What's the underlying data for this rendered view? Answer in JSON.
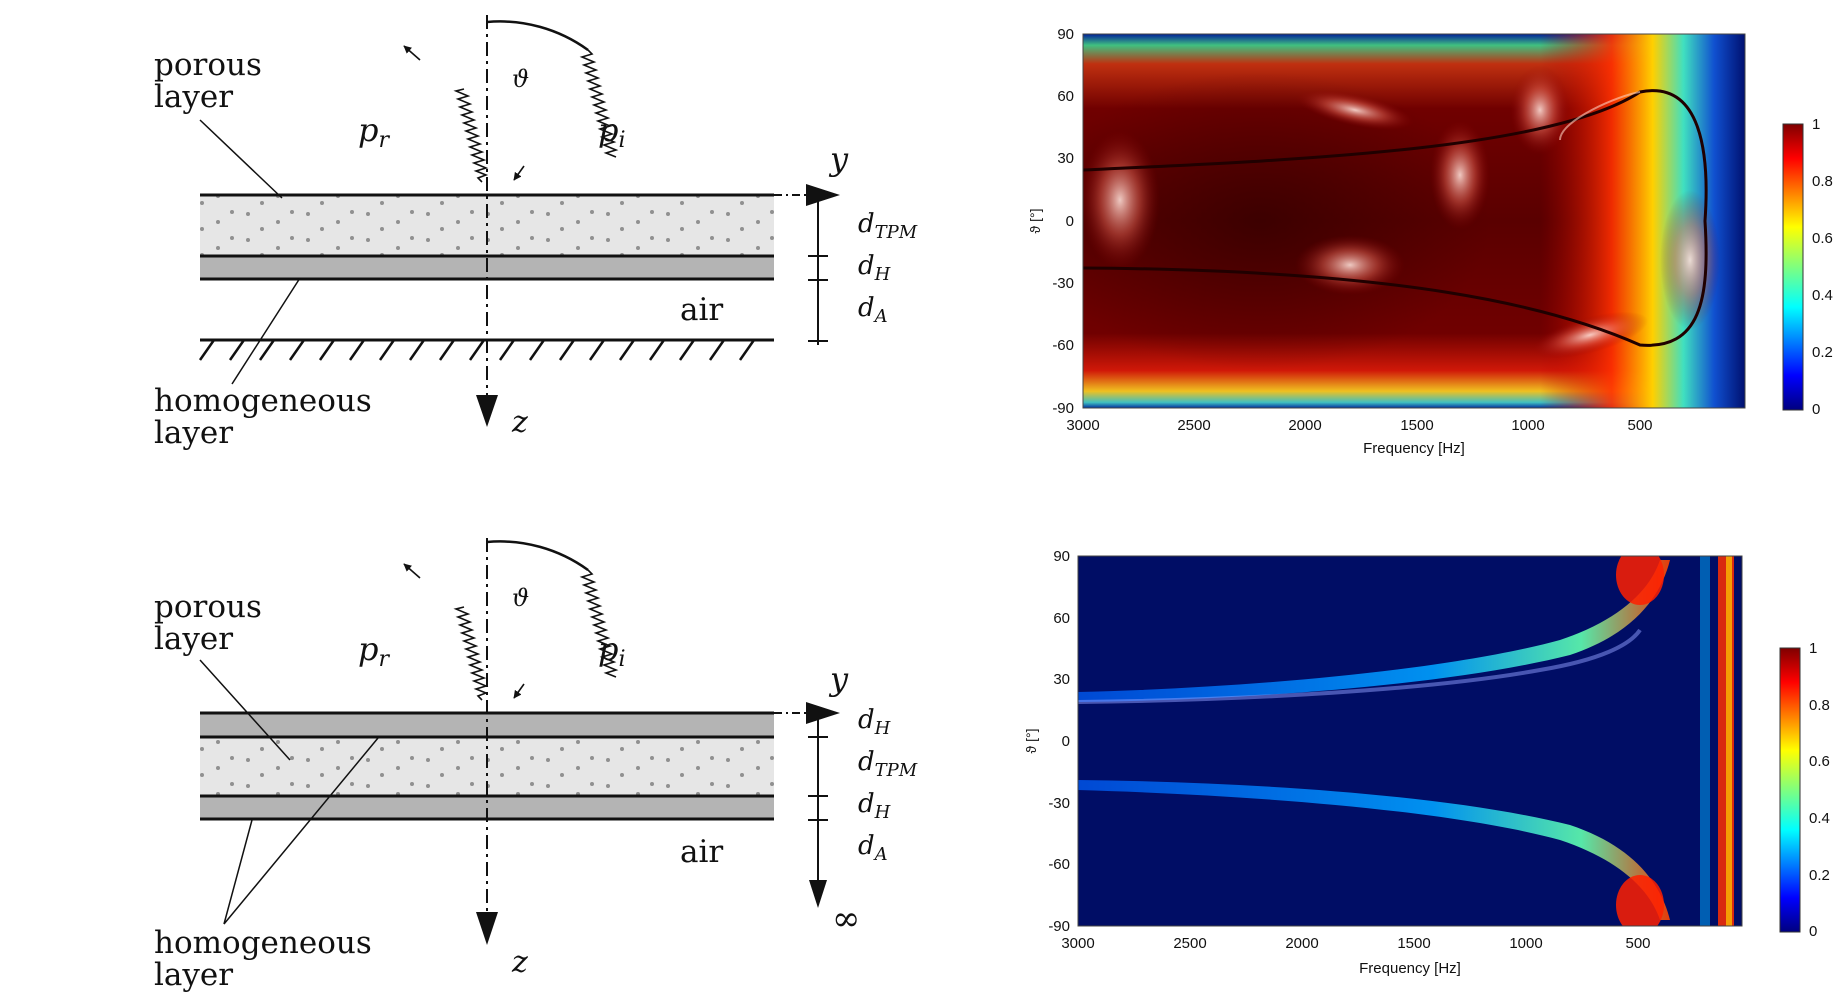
{
  "top_diagram": {
    "labels": {
      "porous_line1": "porous",
      "porous_line2": "layer",
      "homog_line1": "homogeneous",
      "homog_line2": "layer",
      "reflected": "p",
      "reflected_sub": "r",
      "incident": "p",
      "incident_sub": "i",
      "angle": "ϑ",
      "y_axis": "y",
      "z_axis": "z",
      "air": "air",
      "dim_tpm": "d",
      "dim_tpm_sub": "TPM",
      "dim_h": "d",
      "dim_h_sub": "H",
      "dim_a": "d",
      "dim_a_sub": "A"
    }
  },
  "bottom_diagram": {
    "labels": {
      "porous_line1": "porous",
      "porous_line2": "layer",
      "homog_line1": "homogeneous",
      "homog_line2": "layer",
      "reflected": "p",
      "reflected_sub": "r",
      "incident": "p",
      "incident_sub": "i",
      "angle": "ϑ",
      "y_axis": "y",
      "z_axis": "z",
      "air": "air",
      "dim_h_top": "d",
      "dim_h_top_sub": "H",
      "dim_tpm": "d",
      "dim_tpm_sub": "TPM",
      "dim_h": "d",
      "dim_h_sub": "H",
      "dim_a": "d",
      "dim_a_sub": "A",
      "infinity": "∞"
    }
  },
  "chart_data": [
    {
      "type": "heatmap",
      "xlabel": "Frequency [Hz]",
      "ylabel": "ϑ [°]",
      "x_ticks": [
        "3000",
        "2500",
        "2000",
        "1500",
        "1000",
        "500"
      ],
      "y_ticks": [
        "90",
        "60",
        "30",
        "0",
        "-30",
        "-60",
        "-90"
      ],
      "xlim": [
        3000,
        0
      ],
      "ylim": [
        -90,
        90
      ],
      "colorbar_ticks": [
        "1",
        "0.8",
        "0.6",
        "0.4",
        "0.2",
        "0"
      ],
      "colorbar_range": [
        0,
        1
      ],
      "colormap": "jet",
      "background_color": "#b00000"
    },
    {
      "type": "heatmap",
      "xlabel": "Frequency [Hz]",
      "ylabel": "ϑ [°]",
      "x_ticks": [
        "3000",
        "2500",
        "2000",
        "1500",
        "1000",
        "500"
      ],
      "y_ticks": [
        "90",
        "60",
        "30",
        "0",
        "-30",
        "-60",
        "-90"
      ],
      "xlim": [
        3000,
        0
      ],
      "ylim": [
        -90,
        90
      ],
      "colorbar_ticks": [
        "1",
        "0.8",
        "0.6",
        "0.4",
        "0.2",
        "0"
      ],
      "colorbar_range": [
        0,
        1
      ],
      "colormap": "jet",
      "background_color": "#00106a"
    }
  ],
  "colors": {
    "porous_fill": "#e6e6e6",
    "homog_fill": "#b4b4b4",
    "dot": "#909090"
  }
}
